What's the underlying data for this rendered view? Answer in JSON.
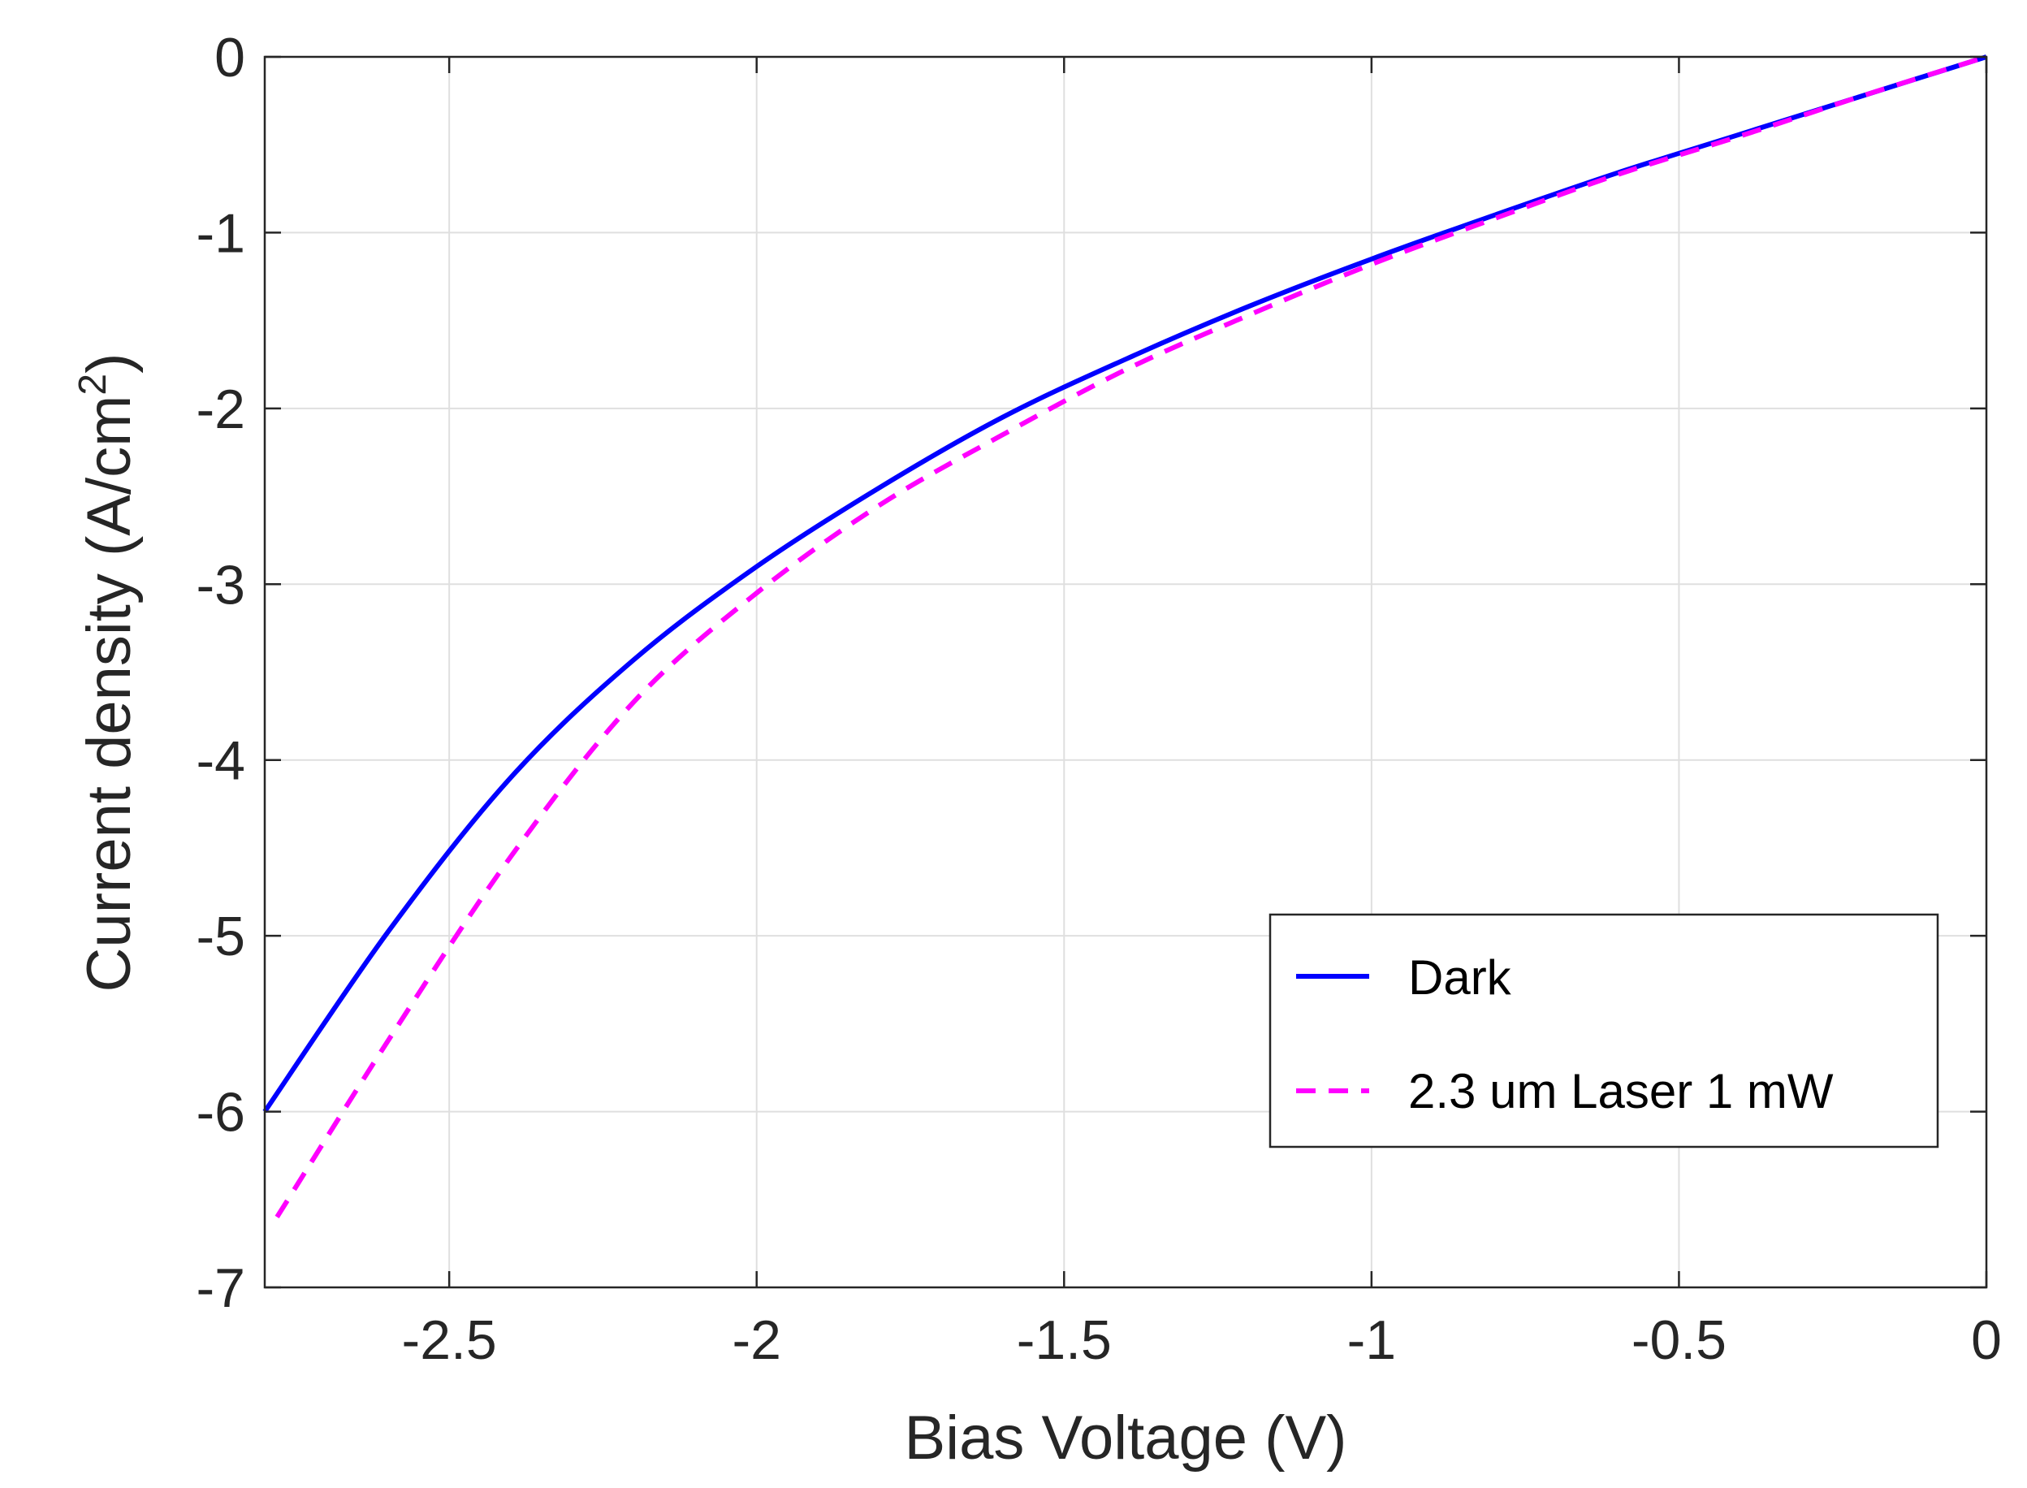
{
  "chart_data": {
    "type": "line",
    "title": "",
    "xlabel": "Bias Voltage (V)",
    "ylabel_main": "Current density (A/cm",
    "ylabel_sup": "2",
    "ylabel_close": ")",
    "xlim": [
      -2.8,
      0
    ],
    "ylim": [
      -7,
      0
    ],
    "xticks": [
      -2.5,
      -2,
      -1.5,
      -1,
      -0.5,
      0
    ],
    "xtick_labels": [
      "-2.5",
      "-2",
      "-1.5",
      "-1",
      "-0.5",
      "0"
    ],
    "yticks": [
      0,
      -1,
      -2,
      -3,
      -4,
      -5,
      -6,
      -7
    ],
    "ytick_labels": [
      "0",
      "-1",
      "-2",
      "-3",
      "-4",
      "-5",
      "-6",
      "-7"
    ],
    "grid": true,
    "legend_position": "bottom-right",
    "series": [
      {
        "name": "Dark",
        "color": "#0000ff",
        "style": "solid",
        "x": [
          -2.8,
          -2.6,
          -2.4,
          -2.2,
          -2.0,
          -1.8,
          -1.6,
          -1.4,
          -1.2,
          -1.0,
          -0.8,
          -0.6,
          -0.4,
          -0.2,
          0
        ],
        "y": [
          -6.0,
          -4.98,
          -4.1,
          -3.43,
          -2.9,
          -2.45,
          -2.05,
          -1.72,
          -1.42,
          -1.15,
          -0.9,
          -0.66,
          -0.44,
          -0.22,
          0
        ]
      },
      {
        "name": "2.3 um Laser 1 mW",
        "color": "#ff00ff",
        "style": "dashed",
        "x": [
          -2.78,
          -2.6,
          -2.4,
          -2.2,
          -2.0,
          -1.8,
          -1.6,
          -1.4,
          -1.2,
          -1.0,
          -0.8,
          -0.6,
          -0.4,
          -0.2,
          0
        ],
        "y": [
          -6.6,
          -5.6,
          -4.55,
          -3.67,
          -3.05,
          -2.55,
          -2.15,
          -1.78,
          -1.47,
          -1.18,
          -0.92,
          -0.67,
          -0.45,
          -0.22,
          0
        ]
      }
    ]
  }
}
